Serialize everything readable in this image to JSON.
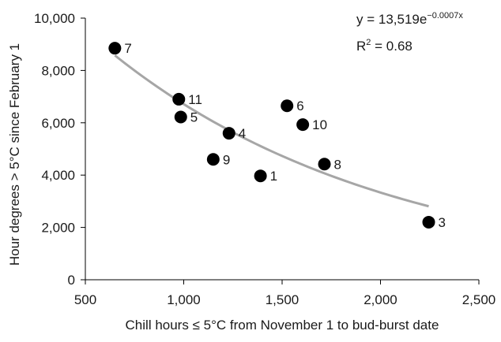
{
  "chart_data": {
    "type": "scatter",
    "xlabel": "Chill hours ≤ 5°C from November 1 to bud-burst date",
    "ylabel": "Hour degrees > 5°C since February 1",
    "xlim": [
      500,
      2500
    ],
    "ylim": [
      0,
      10000
    ],
    "x_ticks": [
      500,
      1000,
      1500,
      2000,
      2500
    ],
    "x_tick_labels": [
      "500",
      "1,000",
      "1,500",
      "2,000",
      "2,500"
    ],
    "y_ticks": [
      0,
      2000,
      4000,
      6000,
      8000,
      10000
    ],
    "y_tick_labels": [
      "0",
      "2,000",
      "4,000",
      "6,000",
      "8,000",
      "10,000"
    ],
    "grid": false,
    "points": [
      {
        "label": "7",
        "x": 650,
        "y": 8850
      },
      {
        "label": "11",
        "x": 975,
        "y": 6900
      },
      {
        "label": "5",
        "x": 985,
        "y": 6220
      },
      {
        "label": "4",
        "x": 1230,
        "y": 5600
      },
      {
        "label": "9",
        "x": 1150,
        "y": 4600
      },
      {
        "label": "1",
        "x": 1390,
        "y": 3970
      },
      {
        "label": "6",
        "x": 1525,
        "y": 6650
      },
      {
        "label": "10",
        "x": 1605,
        "y": 5930
      },
      {
        "label": "8",
        "x": 1715,
        "y": 4420
      },
      {
        "label": "3",
        "x": 2245,
        "y": 2200
      }
    ],
    "trendline": {
      "type": "exponential",
      "a": 13519,
      "b": -0.0007,
      "x_range": [
        650,
        2245
      ],
      "color": "#a6a6a6"
    },
    "equation": {
      "prefix": "y = 13,519e",
      "exponent": "−0.0007x"
    },
    "r_squared": {
      "prefix": "R",
      "sup": "2",
      "suffix": " = 0.68"
    },
    "marker_color": "#000000"
  }
}
